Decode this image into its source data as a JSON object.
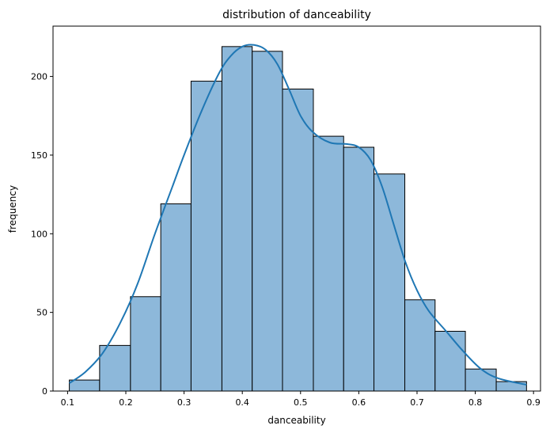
{
  "chart_data": {
    "type": "histogram",
    "title": "distribution of danceability",
    "xlabel": "danceability",
    "ylabel": "frequency",
    "xlim": [
      0.075,
      0.912
    ],
    "ylim": [
      0,
      232
    ],
    "xticks": [
      0.1,
      0.2,
      0.3,
      0.4,
      0.5,
      0.6,
      0.7,
      0.8,
      0.9
    ],
    "yticks": [
      0,
      50,
      100,
      150,
      200
    ],
    "bins": [
      {
        "x0": 0.103,
        "x1": 0.155,
        "count": 7
      },
      {
        "x0": 0.155,
        "x1": 0.208,
        "count": 29
      },
      {
        "x0": 0.208,
        "x1": 0.26,
        "count": 60
      },
      {
        "x0": 0.26,
        "x1": 0.312,
        "count": 119
      },
      {
        "x0": 0.312,
        "x1": 0.365,
        "count": 197
      },
      {
        "x0": 0.365,
        "x1": 0.417,
        "count": 219
      },
      {
        "x0": 0.417,
        "x1": 0.469,
        "count": 216
      },
      {
        "x0": 0.469,
        "x1": 0.522,
        "count": 192
      },
      {
        "x0": 0.522,
        "x1": 0.574,
        "count": 162
      },
      {
        "x0": 0.574,
        "x1": 0.626,
        "count": 155
      },
      {
        "x0": 0.626,
        "x1": 0.679,
        "count": 138
      },
      {
        "x0": 0.679,
        "x1": 0.731,
        "count": 58
      },
      {
        "x0": 0.731,
        "x1": 0.783,
        "count": 38
      },
      {
        "x0": 0.783,
        "x1": 0.836,
        "count": 14
      },
      {
        "x0": 0.836,
        "x1": 0.888,
        "count": 6
      }
    ],
    "kde": {
      "x": [
        0.103,
        0.13,
        0.16,
        0.19,
        0.22,
        0.25,
        0.28,
        0.3,
        0.33,
        0.36,
        0.38,
        0.4,
        0.42,
        0.44,
        0.46,
        0.48,
        0.5,
        0.52,
        0.55,
        0.58,
        0.6,
        0.62,
        0.64,
        0.66,
        0.68,
        0.7,
        0.72,
        0.75,
        0.78,
        0.81,
        0.84,
        0.888
      ],
      "y": [
        5,
        12,
        24,
        43,
        68,
        100,
        130,
        150,
        178,
        202,
        213,
        219,
        220,
        217,
        208,
        192,
        175,
        165,
        158,
        157,
        155,
        147,
        130,
        106,
        82,
        64,
        51,
        38,
        25,
        14,
        8,
        4
      ]
    },
    "grid": false,
    "legend": "none",
    "colors": {
      "bar_fill": "#8db8da",
      "bar_edge": "#000000",
      "kde_line": "#1f77b4"
    }
  }
}
